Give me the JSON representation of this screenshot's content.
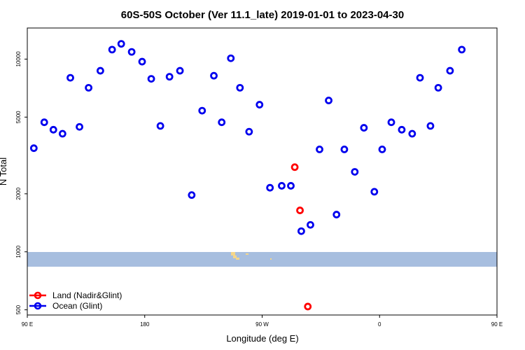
{
  "chart_data": {
    "type": "scatter",
    "title": "60S-50S October (Ver 11.1_late)   2019-01-01 to 2023-04-30",
    "xlabel": "Longitude (deg E)",
    "ylabel": "N Total",
    "y_scale": "log",
    "xlim": [
      90,
      450
    ],
    "ylim": [
      470,
      14500
    ],
    "x_ticks": [
      {
        "value": 90,
        "label": "90 E"
      },
      {
        "value": 180,
        "label": "180"
      },
      {
        "value": 270,
        "label": "90 W"
      },
      {
        "value": 360,
        "label": "0"
      },
      {
        "value": 450,
        "label": "90 E"
      },
      {
        "value": 540,
        "label": "180"
      }
    ],
    "y_ticks": [
      {
        "value": 500,
        "label": "500"
      },
      {
        "value": 1000,
        "label": "1000"
      },
      {
        "value": 2000,
        "label": "2000"
      },
      {
        "value": 5000,
        "label": "5000"
      },
      {
        "value": 10000,
        "label": "10000"
      }
    ],
    "legend_position": "bottom-left",
    "series": [
      {
        "name": "Land (Nadir&Glint)",
        "color": "#ff0000",
        "points": [
          {
            "x": -65,
            "y": 2750
          },
          {
            "x": -61,
            "y": 1640
          },
          {
            "x": -55,
            "y": 520
          }
        ]
      },
      {
        "name": "Ocean (Glint)",
        "color": "#0000ee",
        "points": [
          {
            "x": 95,
            "y": 3450
          },
          {
            "x": 103,
            "y": 4700
          },
          {
            "x": 110,
            "y": 4300
          },
          {
            "x": 117,
            "y": 4100
          },
          {
            "x": 123,
            "y": 8000
          },
          {
            "x": 130,
            "y": 4450
          },
          {
            "x": 137,
            "y": 7100
          },
          {
            "x": 146,
            "y": 8700
          },
          {
            "x": 155,
            "y": 11200
          },
          {
            "x": 162,
            "y": 12000
          },
          {
            "x": 170,
            "y": 10900
          },
          {
            "x": 178,
            "y": 9700
          },
          {
            "x": 185,
            "y": 7900
          },
          {
            "x": 192,
            "y": 4500
          },
          {
            "x": 199,
            "y": 8100
          },
          {
            "x": 207,
            "y": 8700
          },
          {
            "x": 216,
            "y": 1970
          },
          {
            "x": 224,
            "y": 5400
          },
          {
            "x": 233,
            "y": 8200
          },
          {
            "x": 239,
            "y": 4700
          },
          {
            "x": 246,
            "y": 10100
          },
          {
            "x": 253,
            "y": 7100
          },
          {
            "x": 260,
            "y": 4200
          },
          {
            "x": 268,
            "y": 5800
          },
          {
            "x": 276,
            "y": 2150
          },
          {
            "x": 285,
            "y": 2200
          },
          {
            "x": 292,
            "y": 2200
          },
          {
            "x": 300,
            "y": 1280
          },
          {
            "x": 307,
            "y": 1380
          },
          {
            "x": 314,
            "y": 3400
          },
          {
            "x": 321,
            "y": 6100
          },
          {
            "x": 327,
            "y": 1560
          },
          {
            "x": 333,
            "y": 3400
          },
          {
            "x": 341,
            "y": 2600
          },
          {
            "x": 348,
            "y": 4400
          },
          {
            "x": 356,
            "y": 2050
          },
          {
            "x": 362,
            "y": 3400
          },
          {
            "x": 369,
            "y": 4700
          },
          {
            "x": 377,
            "y": 4300
          },
          {
            "x": 385,
            "y": 4100
          },
          {
            "x": 391,
            "y": 8000
          },
          {
            "x": 399,
            "y": 4500
          },
          {
            "x": 405,
            "y": 7100
          },
          {
            "x": 414,
            "y": 8700
          },
          {
            "x": 423,
            "y": 11200
          }
        ]
      }
    ]
  }
}
